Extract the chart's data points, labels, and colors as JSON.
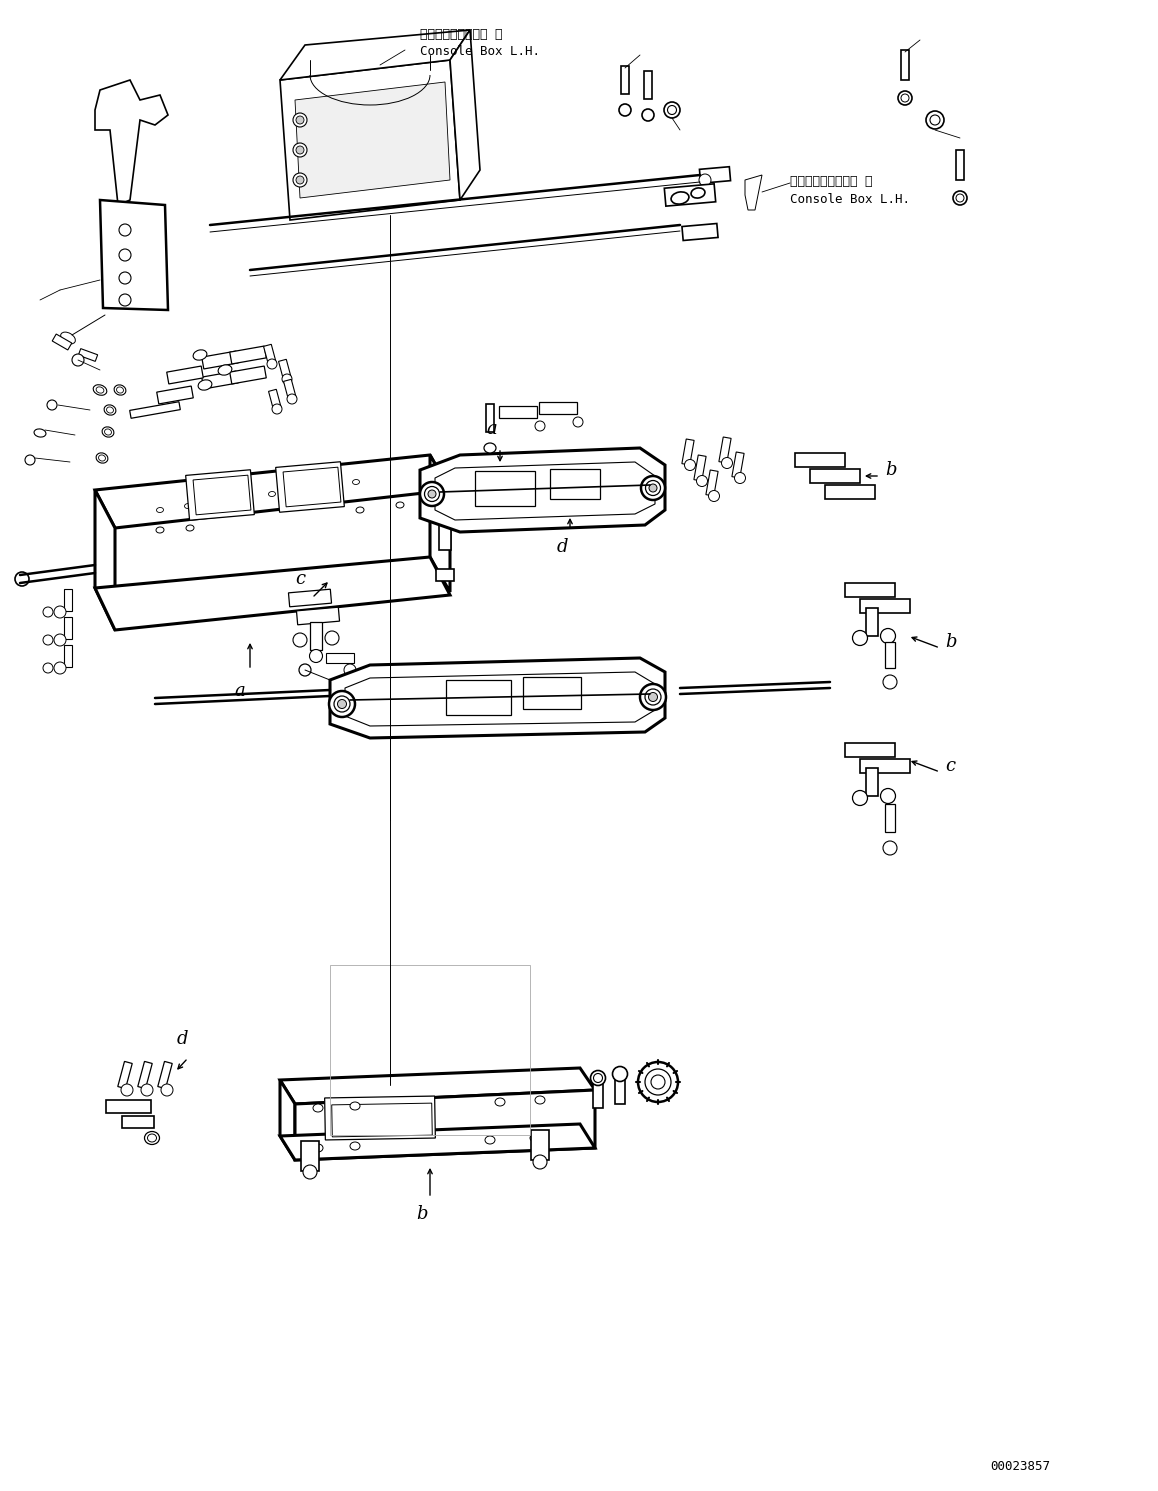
{
  "figure_width": 11.58,
  "figure_height": 14.91,
  "dpi": 100,
  "background_color": "#ffffff",
  "part_number": "00023857",
  "label1_jp": "コンソールボックス 左",
  "label1_en": "Console Box L.H.",
  "label2_jp": "コンソールボックス 左",
  "label2_en": "Console Box L.H."
}
